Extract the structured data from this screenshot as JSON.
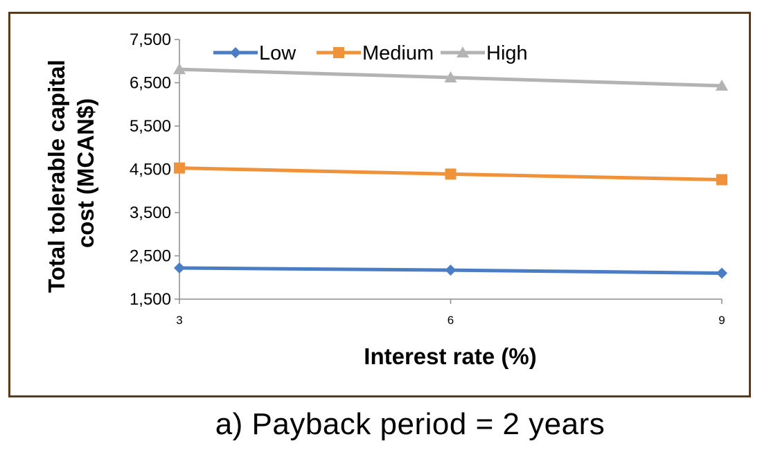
{
  "caption": "a) Payback period = 2 years",
  "chart_data": {
    "type": "line",
    "title": "",
    "xlabel": "Interest rate (%)",
    "ylabel_lines": [
      "Total tolerable capital",
      "cost (MCAN$)"
    ],
    "x": [
      3,
      6,
      9
    ],
    "x_tick_labels": [
      "3",
      "6",
      "9"
    ],
    "ylim": [
      1500,
      7500
    ],
    "y_ticks": [
      1500,
      2500,
      3500,
      4500,
      5500,
      6500,
      7500
    ],
    "y_tick_labels": [
      "1,500",
      "2,500",
      "3,500",
      "4,500",
      "5,500",
      "6,500",
      "7,500"
    ],
    "grid": false,
    "legend_position": "top",
    "series": [
      {
        "name": "Low",
        "values": [
          2220,
          2170,
          2100
        ],
        "color": "#4a7dc4",
        "marker": "diamond"
      },
      {
        "name": "Medium",
        "values": [
          4530,
          4390,
          4260
        ],
        "color": "#f0923a",
        "marker": "square"
      },
      {
        "name": "High",
        "values": [
          6810,
          6620,
          6430
        ],
        "color": "#b3b3b3",
        "marker": "triangle"
      }
    ]
  }
}
